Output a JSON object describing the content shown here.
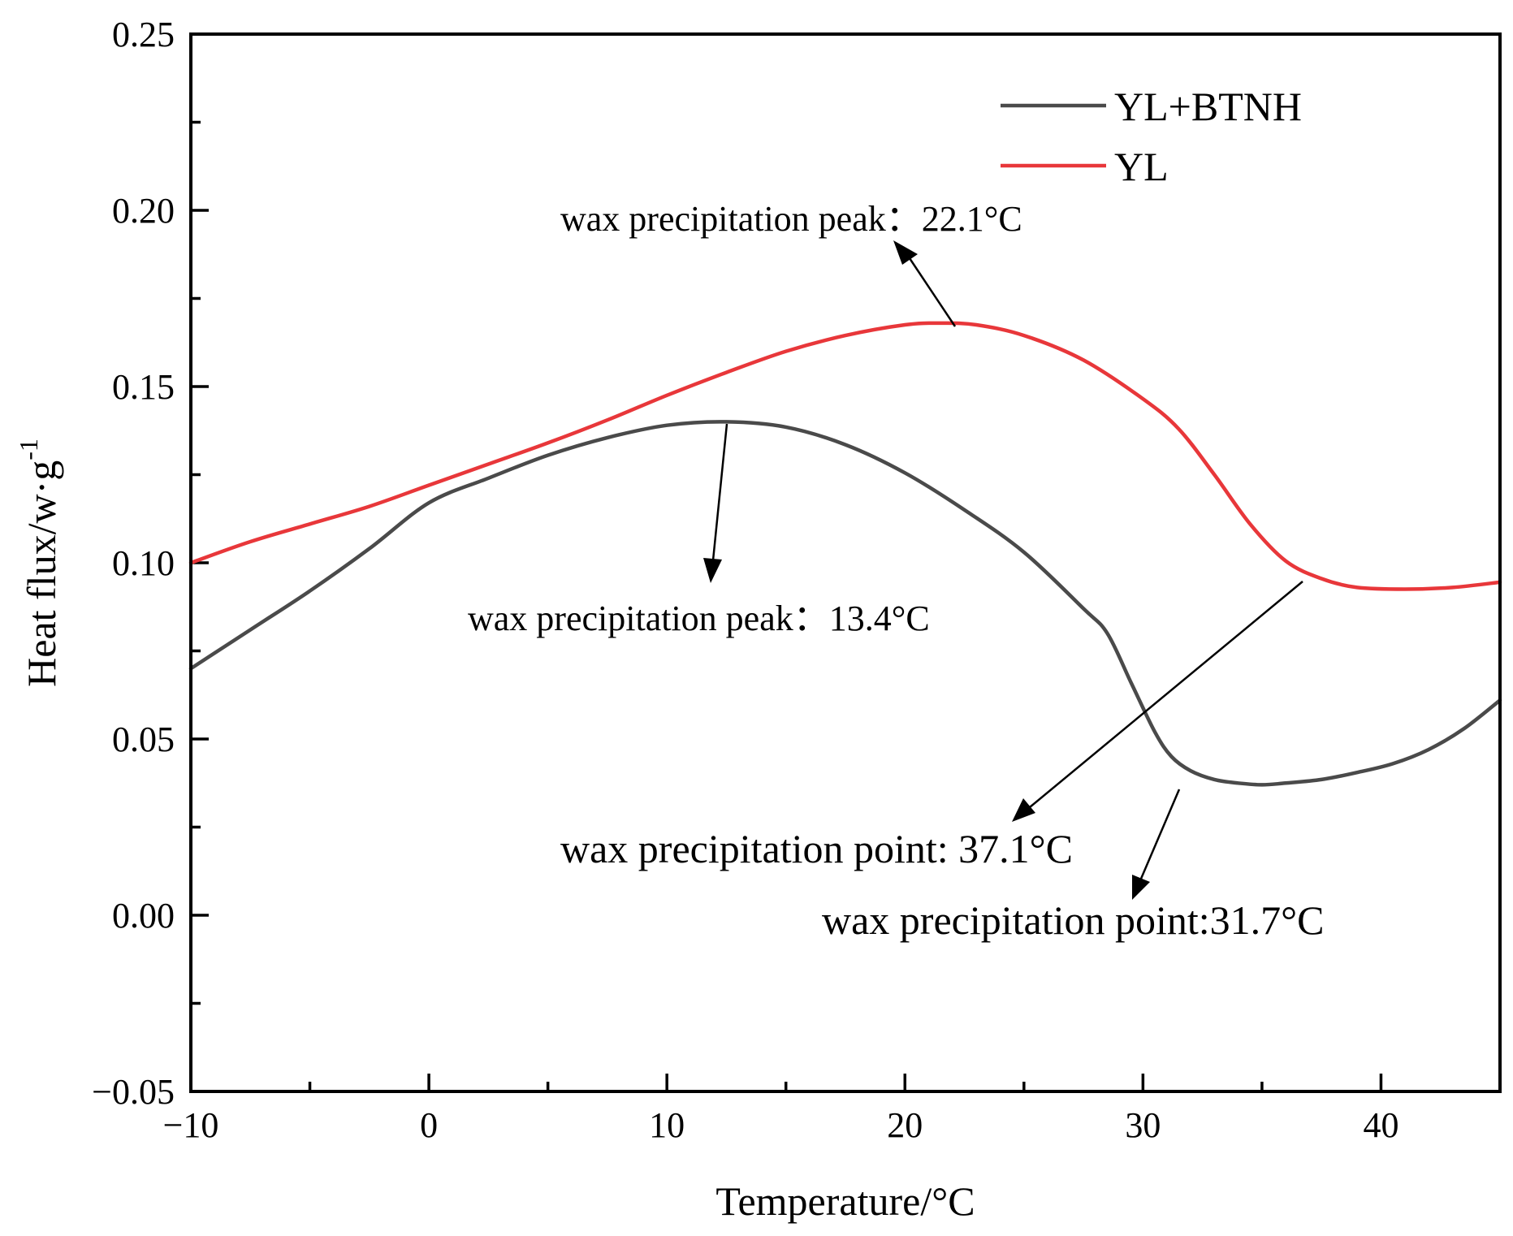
{
  "chart_data": {
    "type": "line",
    "title": "",
    "xlabel": "Temperature/°C",
    "ylabel_main": "Heat flux/w·g",
    "ylabel_sup": "-1",
    "xlim": [
      -10,
      45
    ],
    "ylim": [
      -0.05,
      0.25
    ],
    "x_ticks": [
      -10,
      0,
      10,
      20,
      30,
      40
    ],
    "x_tick_labels": [
      "−10",
      "0",
      "10",
      "20",
      "30",
      "40"
    ],
    "x_minor_ticks": [
      -5,
      5,
      15,
      25,
      35,
      45
    ],
    "y_ticks": [
      -0.05,
      0.0,
      0.05,
      0.1,
      0.15,
      0.2,
      0.25
    ],
    "y_tick_labels": [
      "−0.05",
      "0.00",
      "0.05",
      "0.10",
      "0.15",
      "0.20",
      "0.25"
    ],
    "y_minor_ticks": [
      -0.025,
      0.025,
      0.075,
      0.125,
      0.175,
      0.225
    ],
    "legend_position": "top-right",
    "series": [
      {
        "name": "YL+BTNH",
        "color": "#4a4a4a",
        "points": [
          [
            -10,
            0.07
          ],
          [
            -7.5,
            0.081
          ],
          [
            -5,
            0.092
          ],
          [
            -2.5,
            0.104
          ],
          [
            0,
            0.117
          ],
          [
            2.5,
            0.124
          ],
          [
            5,
            0.1305
          ],
          [
            7.5,
            0.1355
          ],
          [
            10,
            0.139
          ],
          [
            12.5,
            0.14
          ],
          [
            15,
            0.1385
          ],
          [
            17.5,
            0.1335
          ],
          [
            20,
            0.1255
          ],
          [
            22.5,
            0.115
          ],
          [
            25,
            0.103
          ],
          [
            27.5,
            0.087
          ],
          [
            28.5,
            0.08
          ],
          [
            29.5,
            0.066
          ],
          [
            30.5,
            0.052
          ],
          [
            31.2,
            0.045
          ],
          [
            32,
            0.041
          ],
          [
            33,
            0.0385
          ],
          [
            34,
            0.0375
          ],
          [
            35,
            0.037
          ],
          [
            36,
            0.0375
          ],
          [
            37.5,
            0.0385
          ],
          [
            39,
            0.0405
          ],
          [
            40.5,
            0.043
          ],
          [
            42,
            0.047
          ],
          [
            43.5,
            0.053
          ],
          [
            45,
            0.061
          ]
        ]
      },
      {
        "name": "YL",
        "color": "#e8373a",
        "points": [
          [
            -10,
            0.1
          ],
          [
            -7.5,
            0.106
          ],
          [
            -5,
            0.111
          ],
          [
            -2.5,
            0.116
          ],
          [
            0,
            0.122
          ],
          [
            2.5,
            0.128
          ],
          [
            5,
            0.134
          ],
          [
            7.5,
            0.1405
          ],
          [
            10,
            0.1475
          ],
          [
            12.5,
            0.154
          ],
          [
            15,
            0.16
          ],
          [
            17.5,
            0.1645
          ],
          [
            20,
            0.1675
          ],
          [
            21.5,
            0.168
          ],
          [
            23,
            0.1675
          ],
          [
            25,
            0.1645
          ],
          [
            27.5,
            0.1575
          ],
          [
            30,
            0.1465
          ],
          [
            31.5,
            0.138
          ],
          [
            33,
            0.125
          ],
          [
            34.5,
            0.111
          ],
          [
            36,
            0.1005
          ],
          [
            37.5,
            0.0955
          ],
          [
            39,
            0.093
          ],
          [
            41,
            0.0925
          ],
          [
            43,
            0.093
          ],
          [
            45,
            0.0945
          ]
        ]
      }
    ],
    "annotations": [
      {
        "text": "wax precipitation peak：22.1°C",
        "anchor": "upper-center"
      },
      {
        "text": "wax precipitation peak：13.4°C",
        "anchor": "middle-left"
      },
      {
        "text": "wax precipitation point: 37.1°C",
        "anchor": "lower-center"
      },
      {
        "text": "wax precipitation point:31.7°C",
        "anchor": "lower-right"
      }
    ]
  }
}
